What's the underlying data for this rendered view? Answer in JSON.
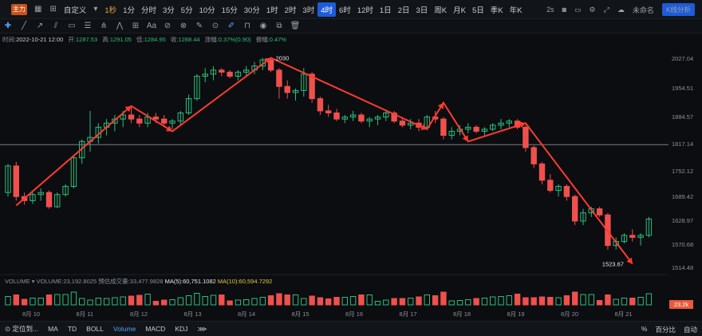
{
  "toolbar": {
    "logo": "主力",
    "custom_label": "自定义",
    "timeframes": [
      "1秒",
      "1分",
      "分时",
      "3分",
      "5分",
      "10分",
      "15分",
      "30分",
      "1时",
      "2时",
      "3时",
      "4时",
      "6时",
      "12时",
      "1日",
      "2日",
      "3日",
      "周K",
      "月K",
      "5日",
      "季K",
      "年K"
    ],
    "active_timeframe": "4时",
    "interval": "2s",
    "unnamed_label": "未命名",
    "k_analysis_label": "K线分析"
  },
  "info": {
    "time_label": "时间:",
    "time": "2022-10-21 12:00",
    "open_label": "开:",
    "open": "1287.53",
    "high_label": "高:",
    "high": "1291.05",
    "low_label": "低:",
    "low": "1284.95",
    "close_label": "收:",
    "close": "1288.44",
    "change_label": "涨幅:",
    "change": "0.37%(0.90)",
    "amp_label": "振幅:",
    "amp": "0.47%"
  },
  "y_axis": [
    "2027.04",
    "1954.51",
    "1884.57",
    "1817.14",
    "1752.12",
    "1689.42",
    "1628.97",
    "1570.68",
    "1514.48"
  ],
  "current_price": "1817.14",
  "annotations": {
    "high_label": "2030",
    "low_label": "1523.67"
  },
  "volume": {
    "label": "VOLUME",
    "value": "VOLUME:23,192.8025",
    "pending": "预估成交量:33,477.9828",
    "ma5": "MA(5):60,751.1082",
    "ma10": "MA(10):60,594.7292",
    "current": "23.2k"
  },
  "x_axis": [
    "8月 10",
    "8月 11",
    "8月 12",
    "8月 13",
    "8月 14",
    "8月 15",
    "8月 16",
    "8月 17",
    "8月 18",
    "8月 19",
    "8月 20",
    "8月 21"
  ],
  "bottom": {
    "locate": "定位到...",
    "indicators": [
      "MA",
      "TD",
      "BOLL",
      "Volume",
      "MACD",
      "KDJ"
    ],
    "active_indicator": "Volume",
    "right": [
      "%",
      "百分比",
      "自动"
    ]
  },
  "chart_data": {
    "type": "candlestick",
    "candles": [
      [
        1700,
        1770,
        1690,
        1765
      ],
      [
        1765,
        1775,
        1680,
        1690
      ],
      [
        1690,
        1700,
        1670,
        1680
      ],
      [
        1680,
        1700,
        1672,
        1695
      ],
      [
        1695,
        1710,
        1680,
        1700
      ],
      [
        1700,
        1705,
        1660,
        1665
      ],
      [
        1665,
        1700,
        1662,
        1695
      ],
      [
        1695,
        1720,
        1690,
        1715
      ],
      [
        1715,
        1790,
        1710,
        1785
      ],
      [
        1785,
        1830,
        1770,
        1825
      ],
      [
        1825,
        1900,
        1800,
        1835
      ],
      [
        1835,
        1870,
        1820,
        1860
      ],
      [
        1860,
        1880,
        1840,
        1870
      ],
      [
        1870,
        1890,
        1850,
        1880
      ],
      [
        1880,
        1900,
        1860,
        1890
      ],
      [
        1890,
        1910,
        1870,
        1880
      ],
      [
        1880,
        1890,
        1860,
        1870
      ],
      [
        1870,
        1895,
        1860,
        1885
      ],
      [
        1885,
        1895,
        1870,
        1880
      ],
      [
        1880,
        1890,
        1865,
        1870
      ],
      [
        1870,
        1880,
        1855,
        1875
      ],
      [
        1875,
        1900,
        1865,
        1895
      ],
      [
        1895,
        1940,
        1890,
        1930
      ],
      [
        1930,
        1990,
        1925,
        1985
      ],
      [
        1985,
        2005,
        1970,
        1990
      ],
      [
        1990,
        2010,
        1975,
        2000
      ],
      [
        2000,
        2005,
        1985,
        1995
      ],
      [
        1995,
        2000,
        1980,
        1985
      ],
      [
        1985,
        2000,
        1975,
        1995
      ],
      [
        1995,
        2010,
        1985,
        2000
      ],
      [
        2000,
        2020,
        1990,
        2010
      ],
      [
        2010,
        2030,
        2000,
        2025
      ],
      [
        2025,
        2030,
        1995,
        2000
      ],
      [
        2000,
        2005,
        1930,
        1960
      ],
      [
        1960,
        1975,
        1930,
        1945
      ],
      [
        1945,
        1955,
        1925,
        1950
      ],
      [
        1950,
        2005,
        1935,
        1990
      ],
      [
        1990,
        1995,
        1920,
        1930
      ],
      [
        1930,
        1935,
        1890,
        1900
      ],
      [
        1900,
        1915,
        1885,
        1895
      ],
      [
        1895,
        1905,
        1875,
        1880
      ],
      [
        1880,
        1890,
        1870,
        1885
      ],
      [
        1885,
        1900,
        1875,
        1890
      ],
      [
        1890,
        1895,
        1870,
        1875
      ],
      [
        1875,
        1885,
        1860,
        1880
      ],
      [
        1880,
        1890,
        1865,
        1885
      ],
      [
        1885,
        1900,
        1875,
        1895
      ],
      [
        1895,
        1900,
        1870,
        1875
      ],
      [
        1875,
        1885,
        1860,
        1865
      ],
      [
        1865,
        1880,
        1855,
        1870
      ],
      [
        1870,
        1880,
        1850,
        1860
      ],
      [
        1860,
        1890,
        1855,
        1885
      ],
      [
        1885,
        1900,
        1870,
        1880
      ],
      [
        1880,
        1885,
        1830,
        1840
      ],
      [
        1840,
        1860,
        1830,
        1850
      ],
      [
        1850,
        1865,
        1840,
        1855
      ],
      [
        1855,
        1870,
        1845,
        1860
      ],
      [
        1860,
        1865,
        1845,
        1850
      ],
      [
        1850,
        1860,
        1840,
        1855
      ],
      [
        1855,
        1870,
        1850,
        1865
      ],
      [
        1865,
        1880,
        1855,
        1870
      ],
      [
        1870,
        1880,
        1860,
        1875
      ],
      [
        1875,
        1880,
        1855,
        1860
      ],
      [
        1860,
        1865,
        1800,
        1810
      ],
      [
        1810,
        1815,
        1760,
        1770
      ],
      [
        1770,
        1775,
        1720,
        1730
      ],
      [
        1730,
        1745,
        1700,
        1705
      ],
      [
        1705,
        1720,
        1690,
        1715
      ],
      [
        1715,
        1720,
        1680,
        1690
      ],
      [
        1690,
        1695,
        1620,
        1630
      ],
      [
        1630,
        1660,
        1620,
        1650
      ],
      [
        1650,
        1665,
        1640,
        1660
      ],
      [
        1660,
        1665,
        1640,
        1645
      ],
      [
        1645,
        1650,
        1560,
        1570
      ],
      [
        1570,
        1590,
        1560,
        1580
      ],
      [
        1580,
        1600,
        1575,
        1595
      ],
      [
        1595,
        1610,
        1580,
        1590
      ],
      [
        1590,
        1600,
        1570,
        1595
      ],
      [
        1595,
        1640,
        1590,
        1635
      ]
    ],
    "ylim": [
      1514.48,
      2030
    ],
    "horizontal_line": 1817.14
  }
}
